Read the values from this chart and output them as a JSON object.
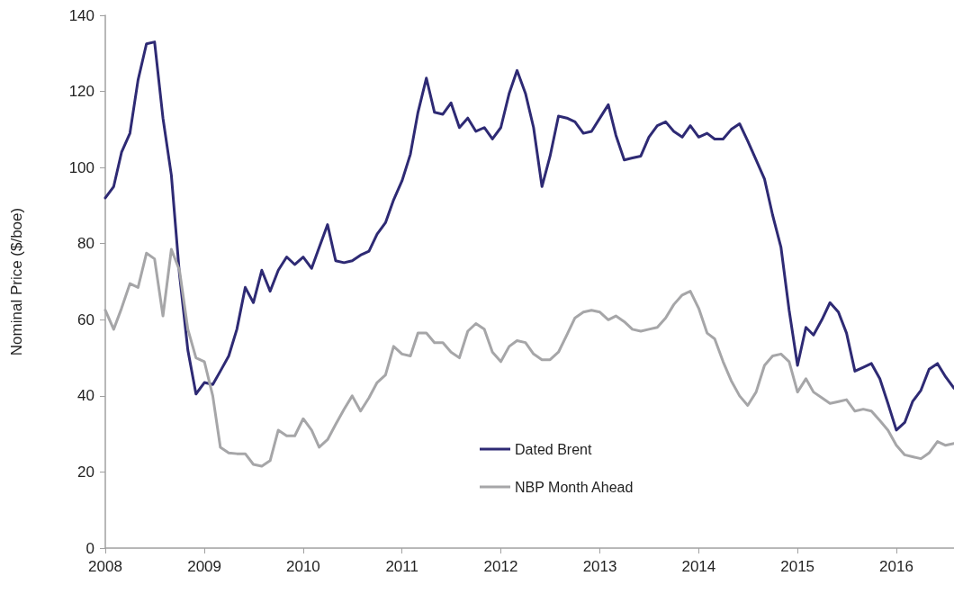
{
  "chart_data": {
    "type": "line",
    "ylabel": "Nominal Price ($/boe)",
    "x": [
      "2008-01",
      "2008-02",
      "2008-03",
      "2008-04",
      "2008-05",
      "2008-06",
      "2008-07",
      "2008-08",
      "2008-09",
      "2008-10",
      "2008-11",
      "2008-12",
      "2009-01",
      "2009-02",
      "2009-03",
      "2009-04",
      "2009-05",
      "2009-06",
      "2009-07",
      "2009-08",
      "2009-09",
      "2009-10",
      "2009-11",
      "2009-12",
      "2010-01",
      "2010-02",
      "2010-03",
      "2010-04",
      "2010-05",
      "2010-06",
      "2010-07",
      "2010-08",
      "2010-09",
      "2010-10",
      "2010-11",
      "2010-12",
      "2011-01",
      "2011-02",
      "2011-03",
      "2011-04",
      "2011-05",
      "2011-06",
      "2011-07",
      "2011-08",
      "2011-09",
      "2011-10",
      "2011-11",
      "2011-12",
      "2012-01",
      "2012-02",
      "2012-03",
      "2012-04",
      "2012-05",
      "2012-06",
      "2012-07",
      "2012-08",
      "2012-09",
      "2012-10",
      "2012-11",
      "2012-12",
      "2013-01",
      "2013-02",
      "2013-03",
      "2013-04",
      "2013-05",
      "2013-06",
      "2013-07",
      "2013-08",
      "2013-09",
      "2013-10",
      "2013-11",
      "2013-12",
      "2014-01",
      "2014-02",
      "2014-03",
      "2014-04",
      "2014-05",
      "2014-06",
      "2014-07",
      "2014-08",
      "2014-09",
      "2014-10",
      "2014-11",
      "2014-12",
      "2015-01",
      "2015-02",
      "2015-03",
      "2015-04",
      "2015-05",
      "2015-06",
      "2015-07",
      "2015-08",
      "2015-09",
      "2015-10",
      "2015-11",
      "2015-12",
      "2016-01",
      "2016-02",
      "2016-03",
      "2016-04",
      "2016-05",
      "2016-06",
      "2016-07",
      "2016-08"
    ],
    "series": [
      {
        "name": "Dated Brent",
        "color": "#2e2a74",
        "values": [
          92,
          95,
          104,
          109,
          123,
          132.5,
          133,
          113,
          98,
          72,
          52,
          40.5,
          43.5,
          43,
          46.5,
          50.5,
          57.5,
          68.5,
          64.5,
          73,
          67.5,
          73,
          76.5,
          74.5,
          76.5,
          73.5,
          79,
          85,
          75.5,
          75,
          75.5,
          77,
          78,
          82.5,
          85.5,
          91.5,
          96.5,
          103.5,
          114.5,
          123.5,
          114.5,
          114,
          117,
          110.5,
          113,
          109.5,
          110.5,
          107.5,
          110.5,
          119.5,
          125.5,
          119.5,
          110.5,
          95,
          103,
          113.5,
          113,
          112,
          109,
          109.5,
          113,
          116.5,
          108.5,
          102,
          102.5,
          103,
          108,
          111,
          112,
          109.5,
          108,
          111,
          108,
          109,
          107.5,
          107.5,
          110,
          111.5,
          107,
          102,
          97,
          87.5,
          79,
          62.5,
          48,
          58,
          56,
          60,
          64.5,
          62,
          56.5,
          46.5,
          47.5,
          48.5,
          44.5,
          38,
          31,
          33,
          38.5,
          41.5,
          47,
          48.5,
          45,
          42
        ]
      },
      {
        "name": "NBP Month Ahead",
        "color": "#a6a6a8",
        "values": [
          62.5,
          57.5,
          63,
          69.5,
          68.5,
          77.5,
          76,
          61,
          78.5,
          73,
          57.5,
          50,
          49,
          40,
          26.5,
          25,
          24.8,
          24.8,
          22,
          21.5,
          23,
          31,
          29.5,
          29.5,
          34,
          31,
          26.5,
          28.5,
          32.5,
          36.5,
          40,
          36,
          39.5,
          43.5,
          45.5,
          53,
          51,
          50.5,
          56.5,
          56.5,
          54,
          54,
          51.5,
          50,
          57,
          59,
          57.5,
          51.5,
          49,
          53,
          54.5,
          54,
          51,
          49.5,
          49.5,
          51.5,
          56,
          60.5,
          62,
          62.5,
          62,
          60,
          61,
          59.5,
          57.5,
          57,
          57.5,
          58,
          60.5,
          64,
          66.5,
          67.5,
          63,
          56.5,
          55,
          49,
          44,
          40,
          37.5,
          41,
          48,
          50.5,
          51,
          49,
          41,
          44.5,
          41,
          39.5,
          38,
          38.5,
          39,
          36,
          36.5,
          36,
          33.5,
          31,
          27,
          24.5,
          24,
          23.5,
          25,
          28,
          27,
          27.5
        ]
      }
    ],
    "xlim": [
      "2008-01",
      "2016-08"
    ],
    "xticks": [
      "2008",
      "2009",
      "2010",
      "2011",
      "2012",
      "2013",
      "2014",
      "2015",
      "2016"
    ],
    "ylim": [
      0,
      140
    ],
    "yticks": [
      0,
      20,
      40,
      60,
      80,
      100,
      120,
      140
    ],
    "grid": false,
    "legend": "bottom",
    "marker": "none",
    "line_style": "solid"
  }
}
